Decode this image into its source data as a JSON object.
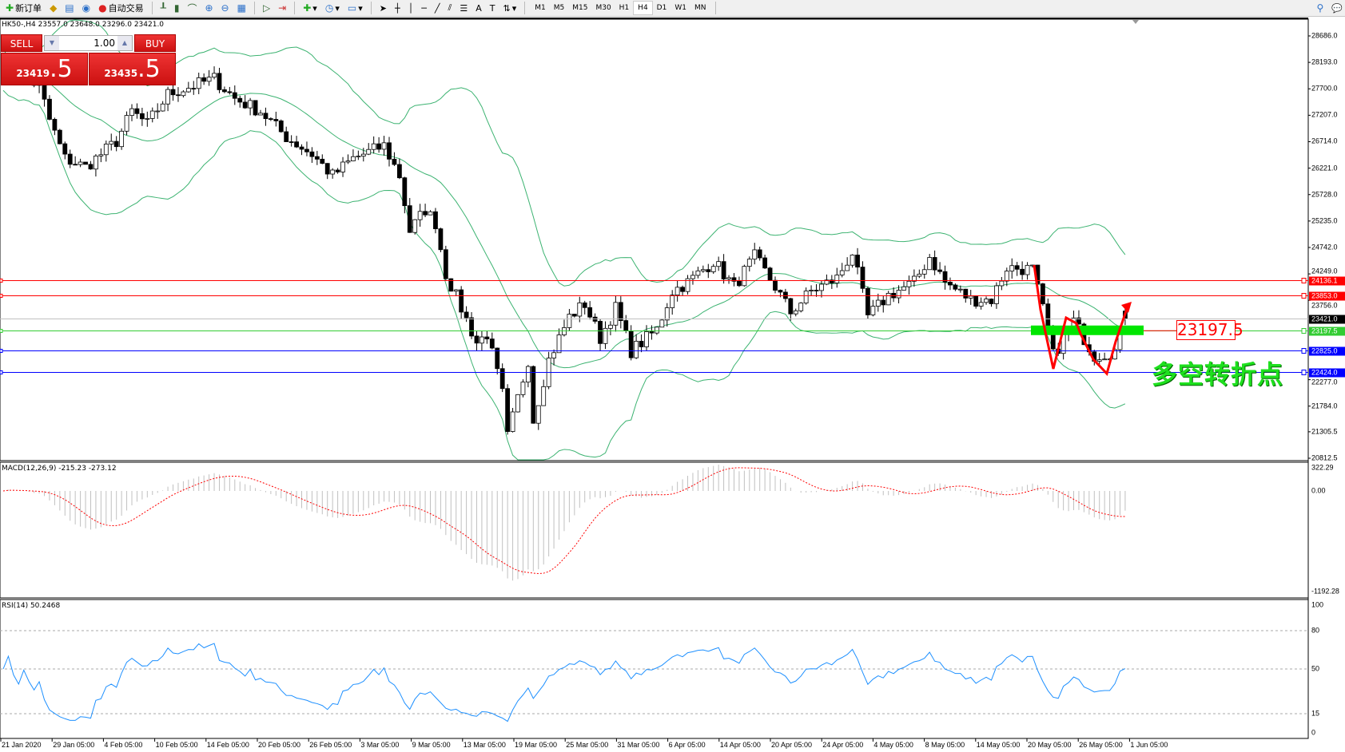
{
  "toolbar": {
    "new_order": "新订单",
    "auto_trading": "自动交易",
    "timeframes": [
      "M1",
      "M5",
      "M15",
      "M30",
      "H1",
      "H4",
      "D1",
      "W1",
      "MN"
    ],
    "active_timeframe": "H4"
  },
  "chart": {
    "title": "HK50-,H4  23557.0 23648.0 23296.0 23421.0",
    "symbol": "HK50-",
    "timeframe": "H4",
    "ohlc": {
      "open": 23557.0,
      "high": 23648.0,
      "low": 23296.0,
      "close": 23421.0
    },
    "price_axis": [
      "28686.0",
      "28193.0",
      "27700.0",
      "27207.0",
      "26714.0",
      "26221.0",
      "25728.0",
      "25235.0",
      "24742.0",
      "24249.0",
      "23756.0",
      "22277.0",
      "21784.0",
      "21305.5",
      "20812.5"
    ],
    "price_range": [
      20812.5,
      28686.0
    ],
    "time_axis": [
      "21 Jan 2020",
      "29 Jan 05:00",
      "4 Feb 05:00",
      "10 Feb 05:00",
      "14 Feb 05:00",
      "20 Feb 05:00",
      "26 Feb 05:00",
      "3 Mar 05:00",
      "9 Mar 05:00",
      "13 Mar 05:00",
      "19 Mar 05:00",
      "25 Mar 05:00",
      "31 Mar 05:00",
      "6 Apr 05:00",
      "14 Apr 05:00",
      "20 Apr 05:00",
      "24 Apr 05:00",
      "4 May 05:00",
      "8 May 05:00",
      "14 May 05:00",
      "20 May 05:00",
      "26 May 05:00",
      "1 Jun 05:00"
    ],
    "close_path": [
      [
        0,
        28100
      ],
      [
        7,
        27760
      ],
      [
        9,
        27120
      ],
      [
        12,
        26400
      ],
      [
        16,
        26240
      ],
      [
        22,
        26720
      ],
      [
        25,
        27280
      ],
      [
        28,
        27040
      ],
      [
        32,
        27600
      ],
      [
        37,
        27760
      ],
      [
        41,
        27890
      ],
      [
        45,
        27520
      ],
      [
        50,
        27280
      ],
      [
        55,
        26800
      ],
      [
        60,
        26480
      ],
      [
        64,
        26080
      ],
      [
        68,
        26400
      ],
      [
        74,
        26640
      ],
      [
        77,
        26080
      ],
      [
        79,
        25050
      ],
      [
        82,
        25450
      ],
      [
        84,
        25200
      ],
      [
        86,
        24250
      ],
      [
        89,
        23610
      ],
      [
        92,
        22970
      ],
      [
        94,
        23130
      ],
      [
        97,
        22010
      ],
      [
        98,
        21210
      ],
      [
        102,
        22650
      ],
      [
        103,
        21530
      ],
      [
        106,
        22650
      ],
      [
        110,
        23450
      ],
      [
        113,
        23690
      ],
      [
        116,
        23050
      ],
      [
        119,
        23610
      ],
      [
        122,
        22810
      ],
      [
        127,
        23210
      ],
      [
        130,
        23930
      ],
      [
        133,
        24090
      ],
      [
        138,
        24490
      ],
      [
        142,
        24010
      ],
      [
        146,
        24570
      ],
      [
        150,
        24010
      ],
      [
        153,
        23530
      ],
      [
        157,
        23930
      ],
      [
        162,
        24170
      ],
      [
        165,
        24650
      ],
      [
        168,
        23450
      ],
      [
        172,
        23850
      ],
      [
        177,
        24090
      ],
      [
        180,
        24570
      ],
      [
        183,
        24090
      ],
      [
        188,
        23770
      ],
      [
        192,
        23770
      ],
      [
        195,
        24370
      ],
      [
        200,
        24330
      ],
      [
        203,
        23210
      ],
      [
        204,
        22730
      ],
      [
        208,
        23370
      ],
      [
        212,
        22730
      ],
      [
        216,
        22810
      ],
      [
        218,
        23421
      ]
    ],
    "horizontal_lines": [
      {
        "price": "24136.1",
        "color": "#ff0000"
      },
      {
        "price": "23853.0",
        "color": "#ff0000"
      },
      {
        "price": "23421.0",
        "color": "#000000",
        "line_color": "#c0c0c0"
      },
      {
        "price": "23197.5",
        "color": "#33cc33"
      },
      {
        "price": "22825.0",
        "color": "#0000ff"
      },
      {
        "price": "22424.0",
        "color": "#0000ff"
      }
    ],
    "level_label": "23197.5",
    "annotation": "多空转折点",
    "colors": {
      "bands": "#3cb371",
      "zigzag": "#ff0000",
      "zone": "#00e600"
    }
  },
  "trade_panel": {
    "sell_label": "SELL",
    "buy_label": "BUY",
    "lot": "1.00",
    "sell_price_main": "23419",
    "sell_price_big": ".5",
    "buy_price_main": "23435",
    "buy_price_big": ".5"
  },
  "macd": {
    "label": "MACD(12,26,9) -215.23 -273.12",
    "axis": [
      "322.29",
      "0.00",
      "-1192.28"
    ]
  },
  "rsi": {
    "label": "RSI(14) 50.2468",
    "axis": [
      "100",
      "80",
      "50",
      "15",
      "0"
    ],
    "value": 50.2468
  }
}
